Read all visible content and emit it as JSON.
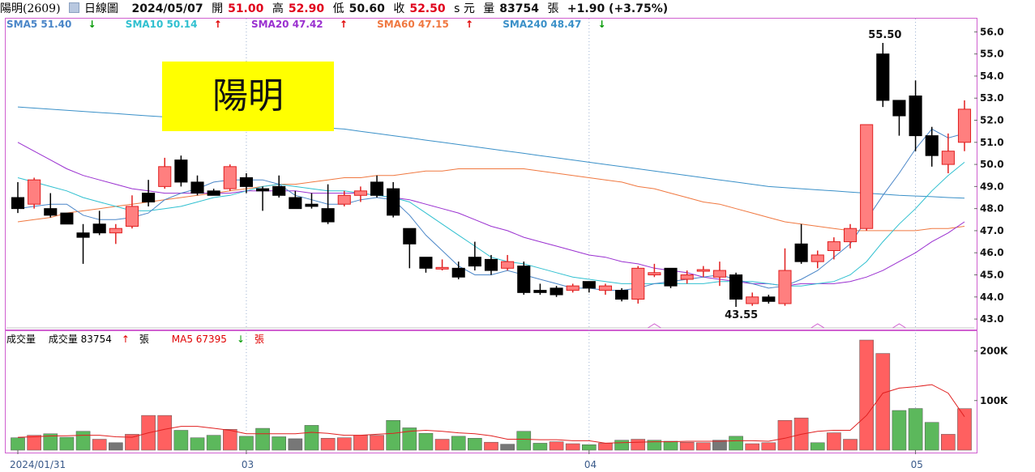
{
  "header": {
    "stock": "陽明(2609)",
    "chart_kind": "日線圖",
    "date": "2024/05/07",
    "open_label": "開",
    "open": "51.00",
    "high_label": "高",
    "high": "52.90",
    "low_label": "低",
    "low": "50.60",
    "close_label": "收",
    "close": "52.50",
    "unit": "s 元",
    "vol_label": "量",
    "volume": "83754",
    "vol_unit": "張",
    "change": "+1.90 (+3.75%)"
  },
  "ma_legend": [
    {
      "label": "SMA5 51.40",
      "arrow": "↓",
      "color": "#4a86c8",
      "arrow_color": "#009900"
    },
    {
      "label": "SMA10 50.14",
      "arrow": "↑",
      "color": "#30c0d0",
      "arrow_color": "#e00000"
    },
    {
      "label": "SMA20 47.42",
      "arrow": "↑",
      "color": "#9a30d0",
      "arrow_color": "#e00000"
    },
    {
      "label": "SMA60 47.15",
      "arrow": "↑",
      "color": "#f07840",
      "arrow_color": "#e00000"
    },
    {
      "label": "SMA240 48.47",
      "arrow": "↓",
      "color": "#3a90c8",
      "arrow_color": "#009900"
    }
  ],
  "title_label": "陽明",
  "volume_legend": {
    "title": "成交量",
    "vol_text": "成交量 83754",
    "vol_arrow": "↑",
    "vol_unit": "張",
    "ma5_text": "MA5 67395",
    "ma5_arrow": "↓",
    "ma5_unit": "張"
  },
  "chart_data": [
    {
      "type": "candlestick",
      "y_ticks": [
        "56.0",
        "55.0",
        "54.0",
        "53.0",
        "52.0",
        "51.0",
        "50.0",
        "49.0",
        "48.0",
        "47.0",
        "46.0",
        "45.0",
        "44.0",
        "43.0"
      ],
      "ylim": [
        42.6,
        56.6
      ],
      "annotations": [
        "55.50",
        "43.55"
      ],
      "candles": [
        [
          48.5,
          48.0,
          49.2,
          47.8
        ],
        [
          48.2,
          49.3,
          49.4,
          48.0
        ],
        [
          48.0,
          47.7,
          48.7,
          47.6
        ],
        [
          47.8,
          47.3,
          47.8,
          47.3
        ],
        [
          46.9,
          46.7,
          47.3,
          45.5
        ],
        [
          47.3,
          46.9,
          47.9,
          46.8
        ],
        [
          46.9,
          47.1,
          47.3,
          46.4
        ],
        [
          47.2,
          48.1,
          48.6,
          47.1
        ],
        [
          48.7,
          48.3,
          49.3,
          48.1
        ],
        [
          49.0,
          49.9,
          50.3,
          48.9
        ],
        [
          50.2,
          49.2,
          50.4,
          49.0
        ],
        [
          49.2,
          48.7,
          49.5,
          48.6
        ],
        [
          48.8,
          48.6,
          48.9,
          48.6
        ],
        [
          48.9,
          49.9,
          50.0,
          48.8
        ],
        [
          49.4,
          49.0,
          49.6,
          48.7
        ],
        [
          48.9,
          48.8,
          49.0,
          47.9
        ],
        [
          49.0,
          48.6,
          49.5,
          48.5
        ],
        [
          48.5,
          48.0,
          48.8,
          48.0
        ],
        [
          48.2,
          48.1,
          48.7,
          48.0
        ],
        [
          48.0,
          47.4,
          49.1,
          47.3
        ],
        [
          48.2,
          48.6,
          48.8,
          48.1
        ],
        [
          48.6,
          48.8,
          49.0,
          48.3
        ],
        [
          49.2,
          48.6,
          49.5,
          48.5
        ],
        [
          48.9,
          47.7,
          49.2,
          47.6
        ],
        [
          47.1,
          46.4,
          47.1,
          45.3
        ],
        [
          45.8,
          45.3,
          45.8,
          45.1
        ],
        [
          45.3,
          45.3,
          45.7,
          45.2
        ],
        [
          45.3,
          44.9,
          45.6,
          44.8
        ],
        [
          45.8,
          45.4,
          46.5,
          45.2
        ],
        [
          45.7,
          45.2,
          45.9,
          45.0
        ],
        [
          45.3,
          45.6,
          45.9,
          45.2
        ],
        [
          45.4,
          44.2,
          45.6,
          44.1
        ],
        [
          44.3,
          44.2,
          44.6,
          44.1
        ],
        [
          44.4,
          44.1,
          44.5,
          44.0
        ],
        [
          44.3,
          44.5,
          44.6,
          44.2
        ],
        [
          44.7,
          44.4,
          44.7,
          44.2
        ],
        [
          44.3,
          44.5,
          44.6,
          44.1
        ],
        [
          44.3,
          43.9,
          44.4,
          43.8
        ],
        [
          43.9,
          45.3,
          45.4,
          43.7
        ],
        [
          45.0,
          45.1,
          45.5,
          44.9
        ],
        [
          45.3,
          44.5,
          45.3,
          44.4
        ],
        [
          44.8,
          45.0,
          45.2,
          44.6
        ],
        [
          45.2,
          45.2,
          45.4,
          44.9
        ],
        [
          44.9,
          45.2,
          45.6,
          44.5
        ],
        [
          45.0,
          43.9,
          45.1,
          43.55
        ],
        [
          43.7,
          44.0,
          44.2,
          43.6
        ],
        [
          44.0,
          43.8,
          44.1,
          43.7
        ],
        [
          43.7,
          45.2,
          46.2,
          43.6
        ],
        [
          46.4,
          45.6,
          47.3,
          45.5
        ],
        [
          45.6,
          45.9,
          46.1,
          45.3
        ],
        [
          46.1,
          46.5,
          46.7,
          45.7
        ],
        [
          46.5,
          47.1,
          47.3,
          46.2
        ],
        [
          47.1,
          51.8,
          51.8,
          47.0
        ],
        [
          55.0,
          52.9,
          55.5,
          52.6
        ],
        [
          52.9,
          52.2,
          52.9,
          51.3
        ],
        [
          53.1,
          51.3,
          53.8,
          50.6
        ],
        [
          51.3,
          50.4,
          51.7,
          49.9
        ],
        [
          50.0,
          50.6,
          51.4,
          49.6
        ],
        [
          51.0,
          52.5,
          52.9,
          50.6
        ]
      ],
      "sma5": [
        48.0,
        48.1,
        48.2,
        48.2,
        47.7,
        47.5,
        47.5,
        47.6,
        47.8,
        48.4,
        48.7,
        48.9,
        49.2,
        49.3,
        49.3,
        49.3,
        49.1,
        48.6,
        48.4,
        48.2,
        48.2,
        48.4,
        48.5,
        48.4,
        47.7,
        46.8,
        46.1,
        45.4,
        45.0,
        45.0,
        45.2,
        45.0,
        44.8,
        44.6,
        44.4,
        44.4,
        44.3,
        44.3,
        44.4,
        44.6,
        44.7,
        44.8,
        44.9,
        45.0,
        44.8,
        44.6,
        44.4,
        44.5,
        44.8,
        45.2,
        45.8,
        46.4,
        47.5,
        48.6,
        49.6,
        50.7,
        51.6,
        51.2,
        51.4
      ],
      "sma10": [
        49.4,
        49.2,
        49.0,
        48.8,
        48.5,
        48.3,
        48.1,
        47.9,
        47.9,
        48.0,
        48.1,
        48.3,
        48.5,
        48.6,
        48.8,
        49.0,
        49.1,
        49.0,
        48.9,
        48.8,
        48.8,
        48.7,
        48.6,
        48.5,
        48.3,
        47.8,
        47.3,
        46.8,
        46.3,
        45.8,
        45.6,
        45.5,
        45.3,
        45.1,
        44.9,
        44.8,
        44.7,
        44.6,
        44.6,
        44.6,
        44.6,
        44.6,
        44.6,
        44.7,
        44.7,
        44.7,
        44.6,
        44.5,
        44.5,
        44.6,
        44.7,
        45.0,
        45.6,
        46.5,
        47.3,
        48.0,
        48.8,
        49.5,
        50.1
      ],
      "sma20": [
        51.0,
        50.6,
        50.2,
        49.8,
        49.5,
        49.3,
        49.1,
        48.9,
        48.8,
        48.7,
        48.7,
        48.7,
        48.7,
        48.7,
        48.8,
        48.8,
        48.8,
        48.8,
        48.7,
        48.7,
        48.7,
        48.7,
        48.6,
        48.5,
        48.4,
        48.2,
        48.0,
        47.8,
        47.5,
        47.2,
        47.0,
        46.7,
        46.5,
        46.3,
        46.1,
        45.9,
        45.8,
        45.6,
        45.5,
        45.3,
        45.2,
        45.1,
        44.9,
        44.8,
        44.7,
        44.6,
        44.6,
        44.5,
        44.6,
        44.6,
        44.6,
        44.7,
        44.9,
        45.2,
        45.6,
        46.0,
        46.5,
        46.9,
        47.4
      ],
      "sma60": [
        47.4,
        47.5,
        47.6,
        47.8,
        47.9,
        48.0,
        48.1,
        48.2,
        48.3,
        48.4,
        48.5,
        48.6,
        48.7,
        48.8,
        48.9,
        49.0,
        49.1,
        49.1,
        49.2,
        49.3,
        49.4,
        49.4,
        49.5,
        49.5,
        49.6,
        49.7,
        49.7,
        49.8,
        49.8,
        49.8,
        49.8,
        49.8,
        49.7,
        49.6,
        49.5,
        49.4,
        49.3,
        49.2,
        49.0,
        48.9,
        48.7,
        48.5,
        48.3,
        48.2,
        48.0,
        47.8,
        47.6,
        47.4,
        47.3,
        47.2,
        47.1,
        47.0,
        47.0,
        47.0,
        47.0,
        47.0,
        47.1,
        47.1,
        47.2
      ],
      "sma240": [
        52.6,
        52.55,
        52.5,
        52.45,
        52.4,
        52.35,
        52.3,
        52.25,
        52.2,
        52.15,
        52.1,
        52.05,
        52.0,
        51.95,
        51.9,
        51.85,
        51.8,
        51.75,
        51.7,
        51.65,
        51.6,
        51.5,
        51.4,
        51.3,
        51.2,
        51.1,
        51.0,
        50.9,
        50.8,
        50.7,
        50.6,
        50.5,
        50.4,
        50.3,
        50.2,
        50.1,
        50.0,
        49.9,
        49.8,
        49.7,
        49.6,
        49.5,
        49.4,
        49.3,
        49.2,
        49.1,
        49.0,
        48.95,
        48.9,
        48.85,
        48.8,
        48.75,
        48.7,
        48.65,
        48.6,
        48.57,
        48.54,
        48.5,
        48.47
      ],
      "x_ticks": [
        {
          "index": 0,
          "label": "2024/01/31"
        },
        {
          "index": 14,
          "label": "03"
        },
        {
          "index": 35,
          "label": "04"
        },
        {
          "index": 55,
          "label": "05"
        }
      ]
    },
    {
      "type": "bar",
      "title": "成交量",
      "y_ticks": [
        "200K",
        "100K"
      ],
      "ylim": [
        0,
        240000
      ],
      "values": [
        25000,
        30000,
        33000,
        26000,
        38000,
        22000,
        15000,
        32000,
        70000,
        70000,
        40000,
        25000,
        30000,
        42000,
        28000,
        44000,
        27000,
        23000,
        50000,
        24000,
        25000,
        30000,
        30000,
        60000,
        45000,
        34000,
        22000,
        28000,
        24000,
        16000,
        12000,
        38000,
        14000,
        17000,
        13000,
        11000,
        14000,
        20000,
        22000,
        20000,
        18000,
        16000,
        15000,
        20000,
        28000,
        13000,
        15000,
        60000,
        65000,
        15000,
        35000,
        22000,
        222000,
        195000,
        80000,
        84000,
        56000,
        32000,
        83754
      ],
      "up": [
        0,
        1,
        0,
        0,
        0,
        1,
        0,
        1,
        1,
        1,
        0,
        0,
        0,
        1,
        0,
        0,
        0,
        0,
        0,
        1,
        1,
        1,
        1,
        0,
        0,
        0,
        1,
        0,
        0,
        1,
        0,
        0,
        0,
        1,
        1,
        0,
        1,
        0,
        1,
        0,
        0,
        1,
        1,
        0,
        0,
        1,
        1,
        1,
        1,
        0,
        1,
        1,
        1,
        1,
        0,
        0,
        0,
        1,
        1
      ],
      "flat": [
        0,
        0,
        0,
        0,
        0,
        0,
        1,
        0,
        0,
        0,
        0,
        0,
        0,
        0,
        0,
        0,
        0,
        1,
        0,
        0,
        0,
        0,
        0,
        0,
        0,
        0,
        0,
        0,
        0,
        0,
        1,
        0,
        0,
        0,
        0,
        0,
        0,
        0,
        0,
        0,
        0,
        0,
        0,
        1,
        0,
        0,
        0,
        0,
        0,
        0,
        0,
        0,
        0,
        0,
        0,
        0,
        0,
        0,
        0
      ],
      "ma5": [
        26000,
        27000,
        28500,
        29000,
        30000,
        30000,
        27000,
        26000,
        35000,
        42000,
        48000,
        48000,
        44000,
        40000,
        33000,
        33000,
        33000,
        33000,
        36000,
        34000,
        30000,
        30000,
        32000,
        34000,
        38000,
        40000,
        38000,
        35000,
        33000,
        29000,
        22000,
        22000,
        21000,
        21000,
        19000,
        19000,
        14000,
        15000,
        16000,
        17000,
        17000,
        18000,
        18000,
        18000,
        19000,
        19000,
        18000,
        24000,
        32000,
        38000,
        40000,
        40000,
        70000,
        115000,
        125000,
        128000,
        132000,
        115000,
        67395
      ]
    }
  ],
  "colors": {
    "up_candle_fill": "#ff7f7f",
    "up_candle_edge": "#e02020",
    "down_candle": "#000000",
    "up_volume": "#ff6060",
    "down_volume": "#5cb85c",
    "flat_volume": "#777777",
    "panel_border": "#d060d0",
    "volume_ma5": "#e02020"
  }
}
